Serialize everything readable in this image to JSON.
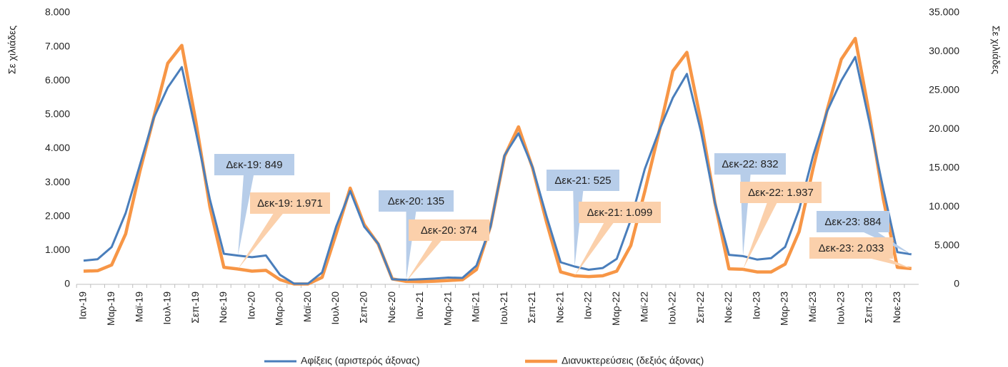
{
  "chart_data": {
    "type": "line",
    "y_label": "Σε χιλιάδες",
    "y2_label": "Σε χιλιάδες",
    "categories": [
      "Ιαν-19",
      null,
      "Μαρ-19",
      null,
      "Μαϊ-19",
      null,
      "Ιουλ-19",
      null,
      "Σεπ-19",
      null,
      "Νοε-19",
      null,
      "Ιαν-20",
      null,
      "Μαρ-20",
      null,
      "Μαϊ-20",
      null,
      "Ιουλ-20",
      null,
      "Σεπ-20",
      null,
      "Νοε-20",
      null,
      "Ιαν-21",
      null,
      "Μαρ-21",
      null,
      "Μαϊ-21",
      null,
      "Ιουλ-21",
      null,
      "Σεπ-21",
      null,
      "Νοε-21",
      null,
      "Ιαν-22",
      null,
      "Μαρ-22",
      null,
      "Μαϊ-22",
      null,
      "Ιουλ-22",
      null,
      "Σεπ-22",
      null,
      "Νοε-22",
      null,
      "Ιαν-23",
      null,
      "Μαρ-23",
      null,
      "Μαϊ-23",
      null,
      "Ιουλ-23",
      null,
      "Σεπ-23",
      null,
      "Νοε-23",
      null
    ],
    "series": [
      {
        "name": "Αφίξεις (αριστερός άξονας)",
        "color": "#4a7ebb",
        "axis": "y",
        "values": [
          700,
          740,
          1100,
          2100,
          3500,
          4900,
          5800,
          6400,
          4500,
          2500,
          900,
          849,
          800,
          850,
          280,
          20,
          20,
          350,
          1700,
          2750,
          1700,
          1200,
          150,
          135,
          150,
          170,
          200,
          190,
          550,
          1700,
          3800,
          4450,
          3450,
          2000,
          650,
          525,
          430,
          480,
          750,
          1900,
          3400,
          4500,
          5500,
          6200,
          4500,
          2400,
          870,
          832,
          730,
          770,
          1100,
          2200,
          3800,
          5100,
          6000,
          6700,
          4800,
          2800,
          950,
          884
        ]
      },
      {
        "name": "Διανυκτερεύσεις (δεξιός άξονας)",
        "color": "#f79646",
        "axis": "y2",
        "values": [
          1700,
          1750,
          2500,
          6500,
          14500,
          21500,
          28500,
          30800,
          21000,
          10000,
          2200,
          1971,
          1700,
          1800,
          600,
          50,
          50,
          900,
          6500,
          12400,
          7700,
          5200,
          700,
          374,
          350,
          400,
          500,
          600,
          1900,
          7500,
          16500,
          20300,
          15000,
          8000,
          1600,
          1099,
          1000,
          1100,
          1700,
          5000,
          12000,
          19500,
          27500,
          29900,
          21000,
          10500,
          2000,
          1937,
          1600,
          1600,
          2600,
          6800,
          15000,
          22500,
          29000,
          31700,
          22000,
          11000,
          2200,
          2033
        ]
      }
    ],
    "ylim": [
      0,
      8000
    ],
    "yticks": [
      0,
      {
        "value": 1000,
        "label": "1.000"
      },
      {
        "value": 2000,
        "label": "2.000"
      },
      {
        "value": 3000,
        "label": "3.000"
      },
      {
        "value": 4000,
        "label": "4.000"
      },
      {
        "value": 5000,
        "label": "5.000"
      },
      {
        "value": 6000,
        "label": "6.000"
      },
      {
        "value": 7000,
        "label": "7.000"
      },
      {
        "value": 8000,
        "label": "8.000"
      }
    ],
    "y2lim": [
      0,
      35000
    ],
    "y2ticks": [
      0,
      {
        "value": 5000,
        "label": "5.000"
      },
      {
        "value": 10000,
        "label": "10.000"
      },
      {
        "value": 15000,
        "label": "15.000"
      },
      {
        "value": 20000,
        "label": "20.000"
      },
      {
        "value": 25000,
        "label": "25.000"
      },
      {
        "value": 30000,
        "label": "30.000"
      },
      {
        "value": 35000,
        "label": "35.000"
      }
    ],
    "annotations": [
      "Δεκ-19: 849",
      "Δεκ-19: 1.971",
      "Δεκ-20: 135",
      "Δεκ-20: 374",
      "Δεκ-21: 525",
      "Δεκ-21: 1.099",
      "Δεκ-22: 832",
      "Δεκ-22: 1.937",
      "Δεκ-23: 884",
      "Δεκ-23: 2.033"
    ],
    "legend": "bottom"
  }
}
